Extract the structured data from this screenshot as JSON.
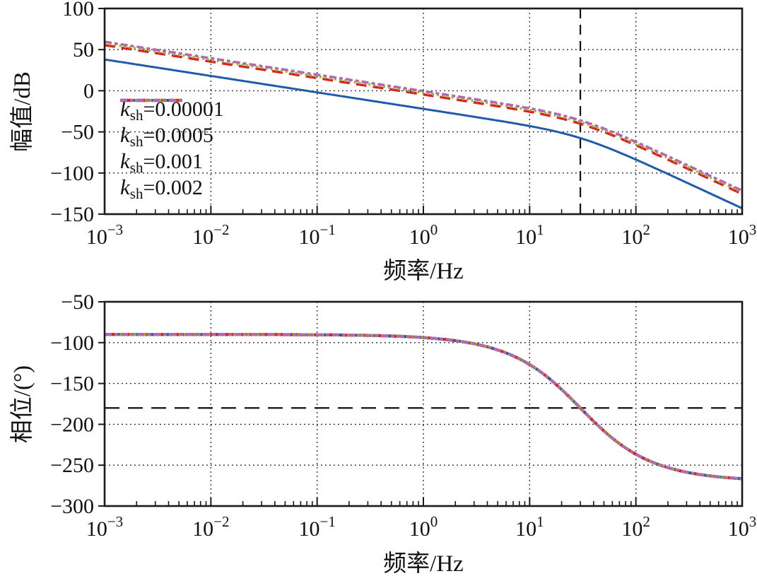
{
  "colors": {
    "axis": "#1a1a1a",
    "grid": "#1a1a1a",
    "guide": "#111111",
    "series_blue": "#1f5ba8",
    "series_red": "#d8231d",
    "series_green": "#8cb822",
    "series_purple": "#b468ae"
  },
  "chart_data": {
    "type": "line",
    "x_scale": "log",
    "x_unit": "Hz",
    "x_log_range": [
      -3,
      3
    ],
    "x_tick_exponents": [
      "−3",
      "−2",
      "−1",
      "0",
      "1",
      "2",
      "3"
    ],
    "model": {
      "corner_hz": 30,
      "integrator_slope_dB_per_decade": -20,
      "pole_order_at_corner": 2,
      "low_freq_phase_deg": -90,
      "high_freq_phase_deg": -270
    },
    "charts": [
      {
        "id": "magnitude",
        "ylabel": "幅值/dB",
        "xlabel": "频率/Hz",
        "ylim": [
          -150,
          100
        ],
        "ytick_values": [
          100,
          50,
          0,
          -50,
          -100,
          -150
        ],
        "ytick_labels": [
          "100",
          "50",
          "0",
          "−50",
          "−100",
          "−150"
        ],
        "grid": "dotted",
        "guide": {
          "type": "vline",
          "x_hz": 30,
          "style": "dashed"
        },
        "series": [
          {
            "name": "ksh=0.00001",
            "color_key": "series_blue",
            "dash": "solid",
            "width": 3.0,
            "mag_at_1mHz_dB": 38.0
          },
          {
            "name": "ksh=0.0005",
            "color_key": "series_red",
            "dash": "15 9",
            "width": 3.6,
            "mag_at_1mHz_dB": 55.5
          },
          {
            "name": "ksh=0.001",
            "color_key": "series_green",
            "dash": "2.5 4.5",
            "width": 3.6,
            "mag_at_1mHz_dB": 57.5
          },
          {
            "name": "ksh=0.002",
            "color_key": "series_purple",
            "dash": "10 4 5 4",
            "width": 3.6,
            "mag_at_1mHz_dB": 59.5
          }
        ],
        "sample_freqs_hz": [
          0.001,
          0.01,
          0.1,
          1,
          10,
          30,
          100,
          1000
        ],
        "sample_values_dB": {
          "ksh=0.00001": [
            38,
            18,
            -2,
            -22,
            -42.5,
            -57.5,
            -83.7,
            -143
          ],
          "ksh=0.0005": [
            55.5,
            35.5,
            15.5,
            -4.5,
            -25,
            -40,
            -66.2,
            -125.5
          ],
          "ksh=0.001": [
            57.5,
            37.5,
            17.5,
            -2.5,
            -23,
            -38,
            -64.2,
            -123.5
          ],
          "ksh=0.002": [
            59.5,
            39.5,
            19.5,
            -0.5,
            -21,
            -36,
            -62.2,
            -121.5
          ]
        }
      },
      {
        "id": "phase",
        "ylabel": "相位/(°)",
        "xlabel": "频率/Hz",
        "ylim": [
          -300,
          -50
        ],
        "ytick_values": [
          -50,
          -100,
          -150,
          -200,
          -250,
          -300
        ],
        "ytick_labels": [
          "−50",
          "−100",
          "−150",
          "−200",
          "−250",
          "−300"
        ],
        "grid": "dotted",
        "guide": {
          "type": "hline",
          "y_deg": -180,
          "style": "dashed"
        },
        "note": "all four series overlap on one curve",
        "sample_freqs_hz": [
          0.001,
          0.01,
          0.1,
          1,
          10,
          30,
          100,
          1000
        ],
        "sample_values_deg": [
          -90,
          -90,
          -90.4,
          -93.8,
          -126.9,
          -180,
          -236.6,
          -266.6
        ]
      }
    ]
  },
  "legend": {
    "entries": [
      {
        "k": "k",
        "sub": "sh",
        "eq": "=0.00001"
      },
      {
        "k": "k",
        "sub": "sh",
        "eq": "=0.0005"
      },
      {
        "k": "k",
        "sub": "sh",
        "eq": "=0.001"
      },
      {
        "k": "k",
        "sub": "sh",
        "eq": "=0.002"
      }
    ]
  }
}
